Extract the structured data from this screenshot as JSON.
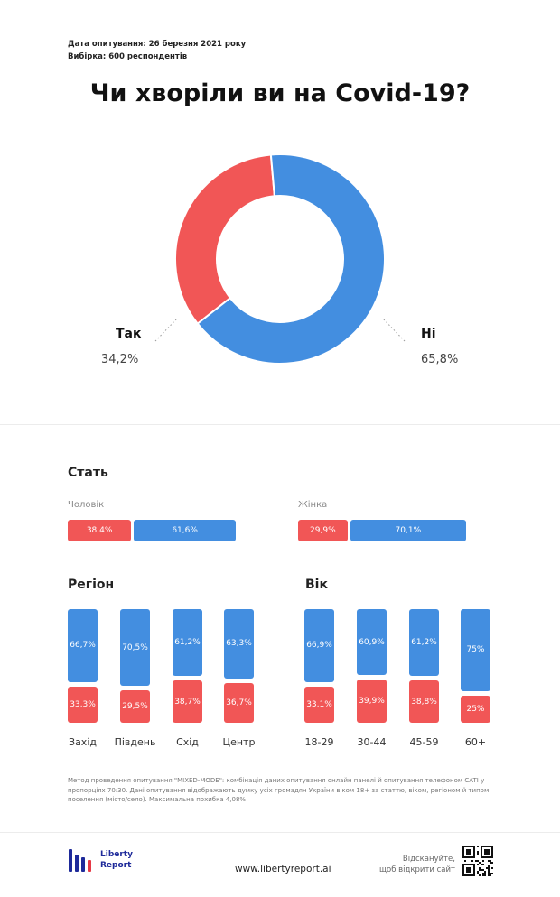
{
  "header": {
    "survey_date": "Дата опитування: 26 березня 2021 року",
    "sample": "Вибірка: 600 респондентів",
    "title": "Чи хворіли ви на Covid-19?"
  },
  "colors": {
    "yes": "#f15656",
    "no": "#438ee0"
  },
  "chart_data": [
    {
      "type": "pie",
      "title": "Чи хворіли ви на Covid-19?",
      "labels": [
        "Так",
        "Ні"
      ],
      "values": [
        34.2,
        65.8
      ],
      "value_labels": [
        "34,2%",
        "65,8%"
      ],
      "donut": true
    },
    {
      "type": "bar",
      "title": "Стать",
      "orientation": "horizontal",
      "stacked": true,
      "categories": [
        "Чоловік",
        "Жінка"
      ],
      "series": [
        {
          "values": [
            38.4,
            29.9
          ],
          "labels": [
            "38,4%",
            "29,9%"
          ]
        },
        {
          "values": [
            61.6,
            70.1
          ],
          "labels": [
            "61,6%",
            "70,1%"
          ]
        }
      ]
    },
    {
      "type": "bar",
      "title": "Регіон",
      "orientation": "vertical",
      "stacked": true,
      "categories": [
        "Захід",
        "Південь",
        "Схід",
        "Центр"
      ],
      "series": [
        {
          "values": [
            66.7,
            70.5,
            61.2,
            63.3
          ],
          "labels": [
            "66,7%",
            "70,5%",
            "61,2%",
            "63,3%"
          ]
        },
        {
          "values": [
            33.3,
            29.5,
            38.7,
            36.7
          ],
          "labels": [
            "33,3%",
            "29,5%",
            "38,7%",
            "36,7%"
          ]
        }
      ]
    },
    {
      "type": "bar",
      "title": "Вік",
      "orientation": "vertical",
      "stacked": true,
      "categories": [
        "18-29",
        "30-44",
        "45-59",
        "60+"
      ],
      "series": [
        {
          "values": [
            66.9,
            60.9,
            61.2,
            75
          ],
          "labels": [
            "66,9%",
            "60,9%",
            "61,2%",
            "75%"
          ]
        },
        {
          "values": [
            33.1,
            39.9,
            38.8,
            25
          ],
          "labels": [
            "33,1%",
            "39,9%",
            "38,8%",
            "25%"
          ]
        }
      ]
    }
  ],
  "methodology": "Метод проведення опитування \"MIXED-MODE\": комбінація даних опитування онлайн панелі й опитування телефоном CATI у пропорціях 70:30. Дані опитування відображають думку усіх громадян України віком 18+ за статтю, віком, регіоном й типом поселення (місто/село). Максимальна похибка 4,08%",
  "footer": {
    "logo_line1": "Liberty",
    "logo_line2": "Report",
    "website": "www.libertyreport.ai",
    "scan_line1": "Відскануйте,",
    "scan_line2": "щоб відкрити сайт"
  }
}
